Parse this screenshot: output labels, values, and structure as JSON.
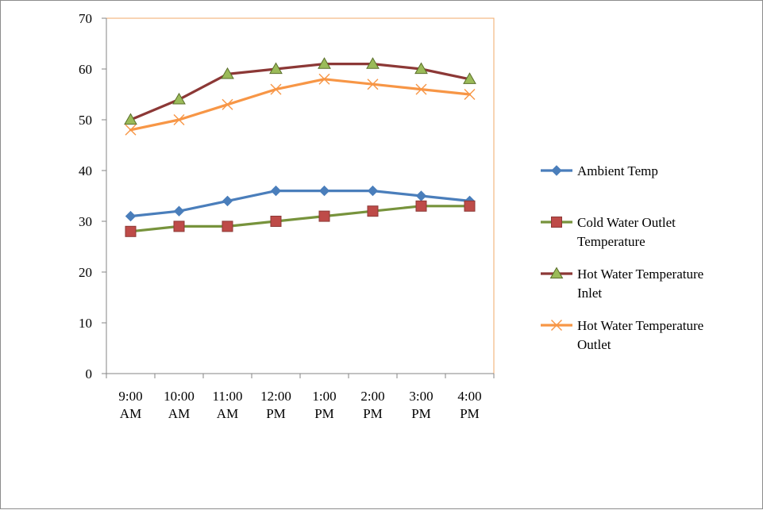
{
  "chart_data": {
    "type": "line",
    "title": "",
    "xlabel": "",
    "ylabel": "",
    "ylim": [
      0,
      70
    ],
    "yticks": [
      0,
      10,
      20,
      30,
      40,
      50,
      60,
      70
    ],
    "grid": false,
    "legend_position": "right",
    "categories": [
      [
        "9:00",
        "AM"
      ],
      [
        "10:00",
        "AM"
      ],
      [
        "11:00",
        "AM"
      ],
      [
        "12:00",
        "PM"
      ],
      [
        "1:00",
        "PM"
      ],
      [
        "2:00",
        "PM"
      ],
      [
        "3:00",
        "PM"
      ],
      [
        "4:00",
        "PM"
      ]
    ],
    "series": [
      {
        "name": "Ambient Temp",
        "legend_lines": [
          "Ambient Temp"
        ],
        "color": "#4a7ebb",
        "marker": "diamond",
        "marker_fill": "#4a7ebb",
        "values": [
          31,
          32,
          34,
          36,
          36,
          36,
          35,
          34
        ]
      },
      {
        "name": "Cold Water Outlet Temperature",
        "legend_lines": [
          "Cold Water Outlet",
          "Temperature"
        ],
        "color": "#77933c",
        "marker": "square",
        "marker_fill": "#be4b48",
        "values": [
          28,
          29,
          29,
          30,
          31,
          32,
          33,
          33
        ]
      },
      {
        "name": "Hot Water Temperature Inlet",
        "legend_lines": [
          "Hot Water Temperature",
          "Inlet"
        ],
        "color": "#8c3836",
        "marker": "triangle",
        "marker_fill": "#9bbb59",
        "values": [
          50,
          54,
          59,
          60,
          61,
          61,
          60,
          58
        ]
      },
      {
        "name": "Hot Water Temperature Outlet",
        "legend_lines": [
          "Hot Water Temperature",
          "Outlet"
        ],
        "color": "#f79646",
        "marker": "x",
        "marker_fill": "#f79646",
        "values": [
          48,
          50,
          53,
          56,
          58,
          57,
          56,
          55
        ]
      }
    ]
  }
}
